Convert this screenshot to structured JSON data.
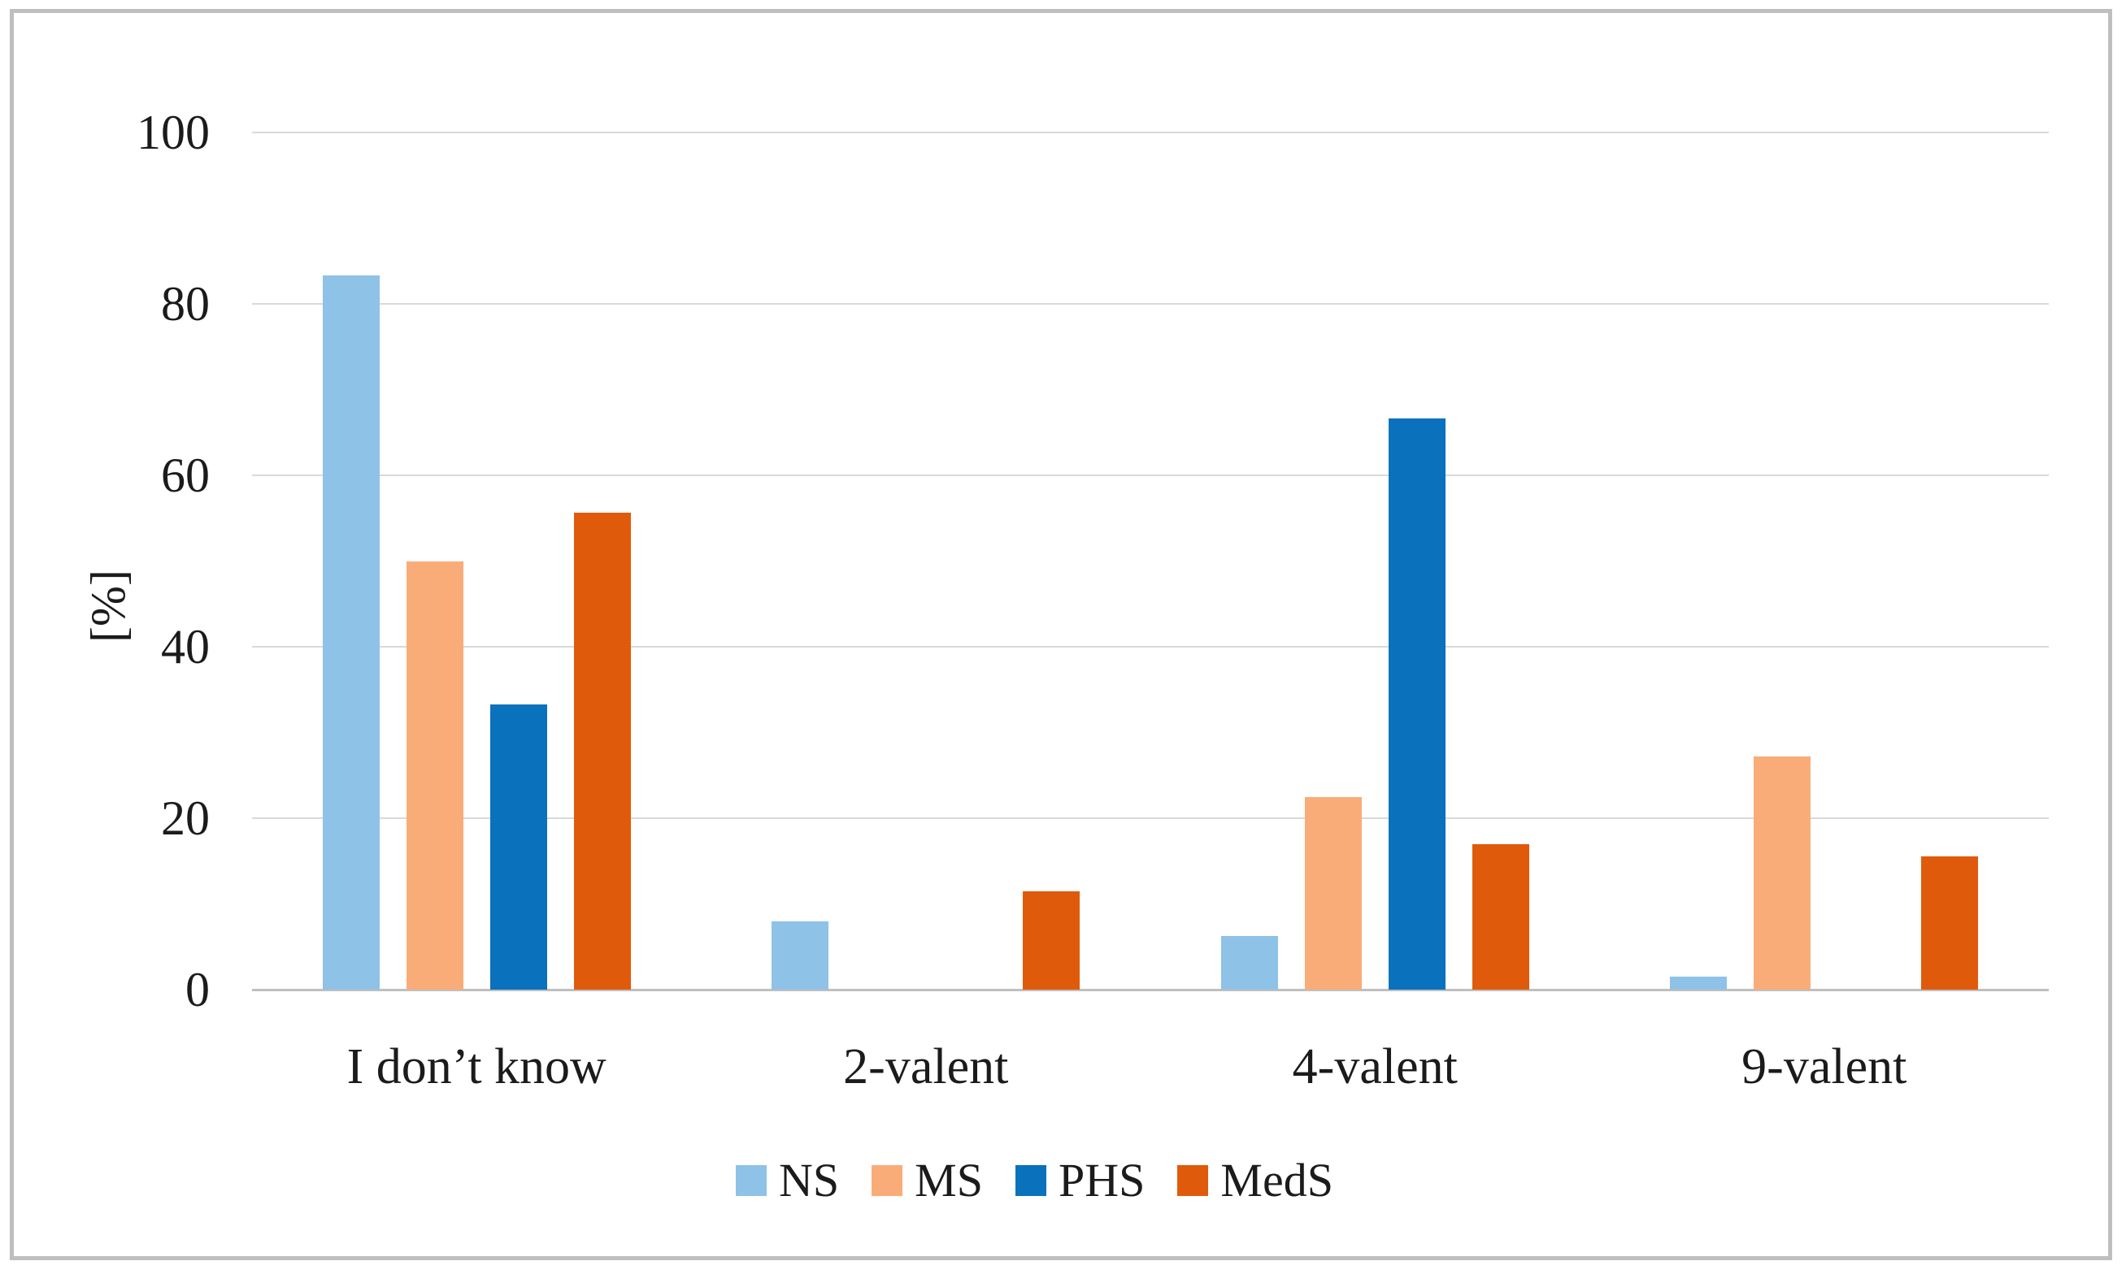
{
  "chart_data": {
    "type": "bar",
    "categories": [
      "I don’t know",
      "2-valent",
      "4-valent",
      "9-valent"
    ],
    "series": [
      {
        "name": "NS",
        "color": "#8EC2E7",
        "values": [
          83.3,
          8.0,
          6.3,
          1.5
        ]
      },
      {
        "name": "MS",
        "color": "#FAAC78",
        "values": [
          50.0,
          0.0,
          22.5,
          27.2
        ]
      },
      {
        "name": "PHS",
        "color": "#0A71BD",
        "values": [
          33.3,
          0.0,
          66.6,
          0.0
        ]
      },
      {
        "name": "MedS",
        "color": "#DF5B0B",
        "values": [
          55.6,
          11.5,
          17.0,
          15.5
        ]
      }
    ],
    "title": "",
    "xlabel": "",
    "ylabel": "[%]",
    "ylim": [
      0,
      100
    ],
    "yticks": [
      0,
      20,
      40,
      60,
      80,
      100
    ],
    "grid": true,
    "legend_position": "bottom"
  },
  "style_colors": {
    "gridline": "#d9d9d9",
    "axis_line": "#bfbfbf",
    "frame_border": "#bfbfbf",
    "text": "#1b1b1b"
  }
}
